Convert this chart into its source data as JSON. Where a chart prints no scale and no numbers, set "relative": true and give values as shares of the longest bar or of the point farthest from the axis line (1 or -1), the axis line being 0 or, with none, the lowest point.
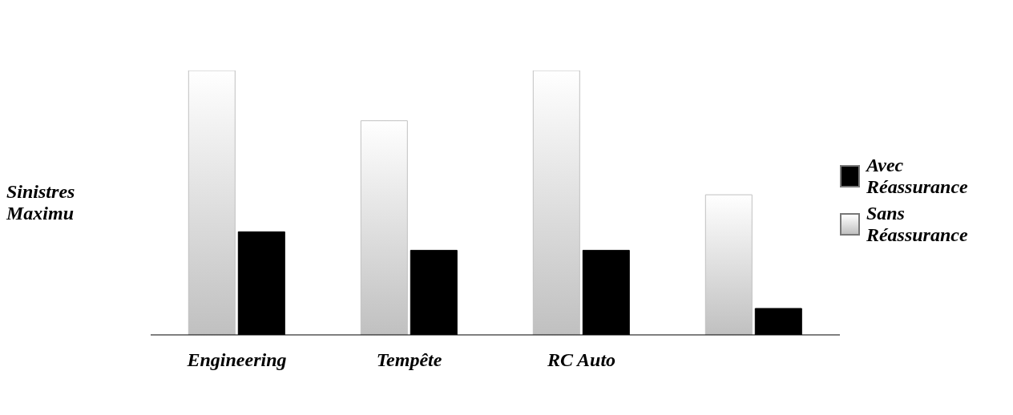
{
  "chart_data": {
    "type": "bar",
    "relative": true,
    "ylabel": "Sinistres Maximu",
    "categories": [
      "Engineering",
      "Tempête",
      "RC Auto",
      null
    ],
    "legend": "right",
    "series": [
      {
        "name": "Sans Réassurance",
        "color": "#c0c0c0",
        "values": [
          1,
          0.81,
          1,
          0.53
        ]
      },
      {
        "name": "Avec Réassurance",
        "color": "#000000",
        "values": [
          0.39,
          0.32,
          0.32,
          0.1
        ]
      }
    ]
  }
}
